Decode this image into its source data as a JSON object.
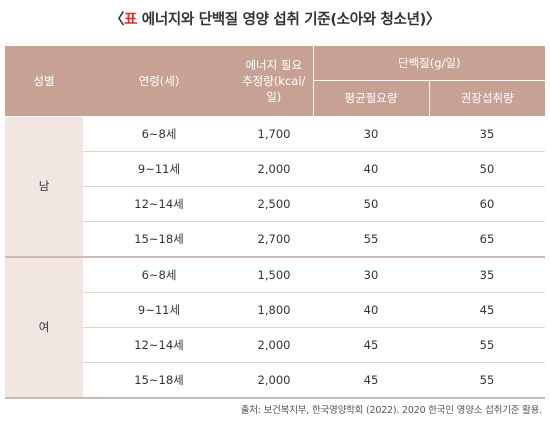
{
  "title": {
    "open": "〈",
    "mark": "표",
    "text": " 에너지와 단백질 영양 섭취 기준(소아와 청소년)",
    "close": "〉"
  },
  "headers": {
    "gender": "성별",
    "age": "연령(세)",
    "energy_line1": "에너지 필요",
    "energy_line2": "추정량(kcal/일)",
    "protein": "단백질(g/일)",
    "avg_req": "평균필요량",
    "rec_intake": "권장섭취량"
  },
  "groups": [
    {
      "gender": "남",
      "rows": [
        {
          "age": "6~8세",
          "energy": "1,700",
          "avg": "30",
          "rec": "35"
        },
        {
          "age": "9~11세",
          "energy": "2,000",
          "avg": "40",
          "rec": "50"
        },
        {
          "age": "12~14세",
          "energy": "2,500",
          "avg": "50",
          "rec": "60"
        },
        {
          "age": "15~18세",
          "energy": "2,700",
          "avg": "55",
          "rec": "65"
        }
      ]
    },
    {
      "gender": "여",
      "rows": [
        {
          "age": "6~8세",
          "energy": "1,500",
          "avg": "30",
          "rec": "35"
        },
        {
          "age": "9~11세",
          "energy": "1,800",
          "avg": "40",
          "rec": "45"
        },
        {
          "age": "12~14세",
          "energy": "2,000",
          "avg": "45",
          "rec": "55"
        },
        {
          "age": "15~18세",
          "energy": "2,000",
          "avg": "45",
          "rec": "55"
        }
      ]
    }
  ],
  "source": "출처: 보건복지부, 한국영양학회 (2022). 2020 한국인 영양소 섭취기준 활용."
}
